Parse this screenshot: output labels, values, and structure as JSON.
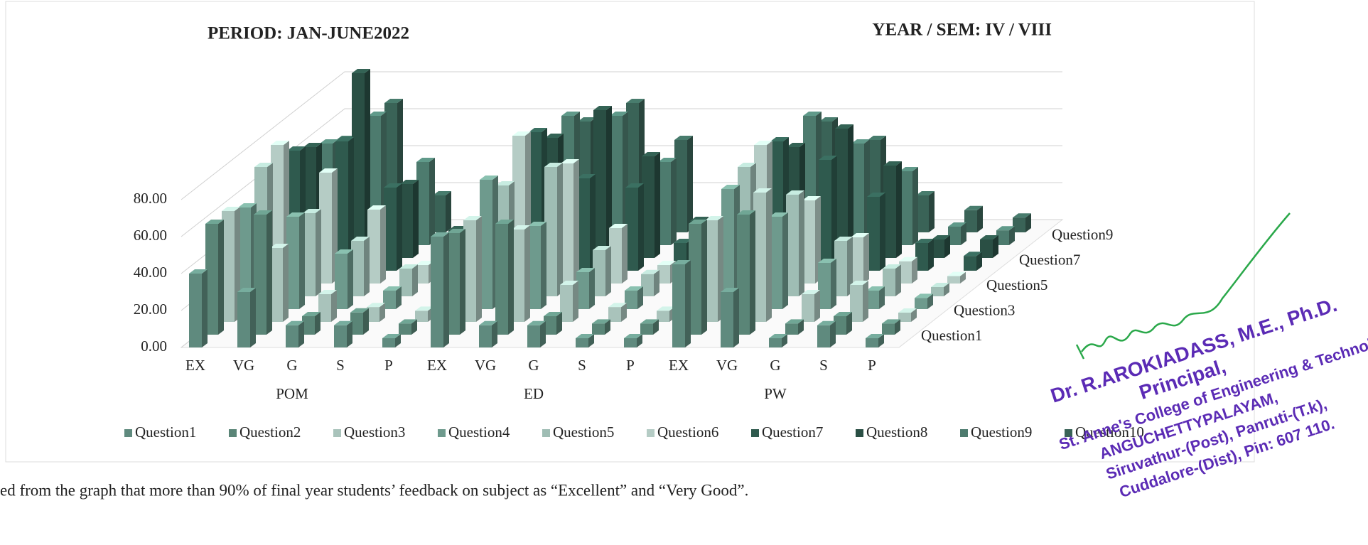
{
  "chart_data": {
    "type": "bar",
    "title": "PERIOD: JAN-JUNE2022",
    "subtitle": "YEAR / SEM: IV / VIII",
    "categories": [
      "EX",
      "VG",
      "G",
      "S",
      "P",
      "EX",
      "VG",
      "G",
      "S",
      "P",
      "EX",
      "VG",
      "G",
      "S",
      "P"
    ],
    "groups": [
      "POM",
      "ED",
      "PW"
    ],
    "ylim": [
      0,
      100
    ],
    "yticks": [
      {
        "value": 0,
        "label": "0.00"
      },
      {
        "value": 20,
        "label": "20.00"
      },
      {
        "value": 40,
        "label": "40.00"
      },
      {
        "value": 60,
        "label": "60.00"
      },
      {
        "value": 80,
        "label": "80.00"
      }
    ],
    "grid": true,
    "series": [
      {
        "name": "Question1",
        "color": "#5f8a7e",
        "values": [
          40,
          30,
          12,
          12,
          5,
          60,
          12,
          12,
          5,
          5,
          45,
          30,
          5,
          12,
          5
        ]
      },
      {
        "name": "Question2",
        "color": "#5a8577",
        "values": [
          60,
          65,
          10,
          12,
          6,
          55,
          60,
          10,
          6,
          6,
          60,
          65,
          6,
          10,
          6
        ]
      },
      {
        "name": "Question3",
        "color": "#a9c3bb",
        "values": [
          60,
          40,
          15,
          8,
          6,
          55,
          50,
          20,
          8,
          6,
          55,
          70,
          15,
          20,
          5
        ]
      },
      {
        "name": "Question4",
        "color": "#6e9a8d",
        "values": [
          55,
          50,
          30,
          10,
          5,
          70,
          45,
          20,
          10,
          6,
          65,
          50,
          25,
          10,
          6
        ]
      },
      {
        "name": "Question5",
        "color": "#9fbdb4",
        "values": [
          70,
          45,
          30,
          15,
          5,
          60,
          70,
          25,
          12,
          8,
          70,
          55,
          30,
          15,
          5
        ]
      },
      {
        "name": "Question6",
        "color": "#b5ccc5",
        "values": [
          75,
          60,
          40,
          10,
          4,
          80,
          65,
          30,
          10,
          5,
          75,
          45,
          25,
          12,
          4
        ]
      },
      {
        "name": "Question7",
        "color": "#2f5a4e",
        "values": [
          65,
          70,
          45,
          15,
          5,
          75,
          50,
          45,
          15,
          10,
          70,
          60,
          40,
          15,
          8
        ]
      },
      {
        "name": "Question8",
        "color": "#2a4f44",
        "values": [
          60,
          100,
          40,
          15,
          5,
          65,
          80,
          55,
          20,
          10,
          60,
          70,
          50,
          10,
          10
        ]
      },
      {
        "name": "Question9",
        "color": "#4d7b6e",
        "values": [
          55,
          70,
          45,
          8,
          5,
          70,
          70,
          45,
          12,
          8,
          70,
          55,
          40,
          10,
          8
        ]
      },
      {
        "name": "Question10",
        "color": "#3a6357",
        "values": [
          50,
          70,
          20,
          5,
          5,
          60,
          70,
          50,
          15,
          10,
          60,
          50,
          20,
          12,
          8
        ]
      }
    ]
  },
  "caption": "ed from the graph that more than 90% of final year students’ feedback on subject as “Excellent” and “Very Good”.",
  "stamp": {
    "lines": [
      "Dr. R.AROKIADASS, M.E., Ph.D.",
      "Principal,",
      "St. Anne's College of Engineering & Technology,",
      "ANGUCHETTYPALAYAM,",
      "Siruvathur-(Post), Panruti-(T.k),",
      "Cuddalore-(Dist), Pin: 607 110."
    ]
  }
}
